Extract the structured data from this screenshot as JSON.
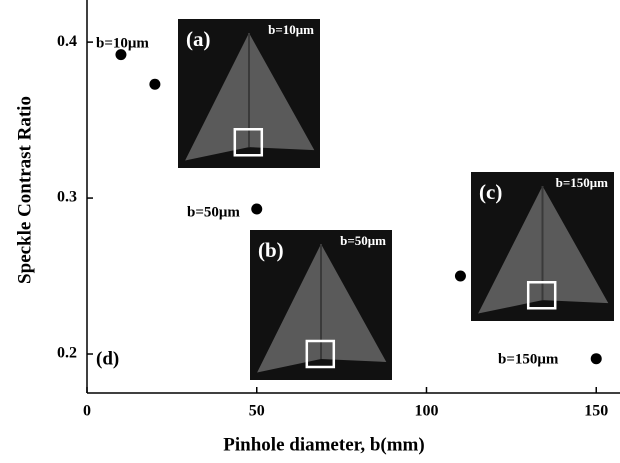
{
  "chart_data": {
    "type": "scatter",
    "x_label": "Pinhole diameter, b(mm)",
    "y_label": "Speckle Contrast Ratio",
    "x": [
      10,
      20,
      50,
      110,
      150
    ],
    "values": [
      0.392,
      0.373,
      0.293,
      0.25,
      0.197
    ],
    "color": "#000000",
    "xlim": [
      0,
      157
    ],
    "ylim": [
      0.175,
      0.427
    ],
    "xticks": [
      0,
      50,
      100,
      150
    ],
    "yticks": [
      0.2,
      0.3,
      0.4
    ],
    "annotations": [
      "b=10μm",
      "b=50μm",
      "b=150μm",
      "(d)"
    ],
    "insets": [
      {
        "tag": "(a)",
        "label": "b=10μm"
      },
      {
        "tag": "(b)",
        "label": "b=50μm"
      },
      {
        "tag": "(c)",
        "label": "b=150μm"
      }
    ]
  }
}
